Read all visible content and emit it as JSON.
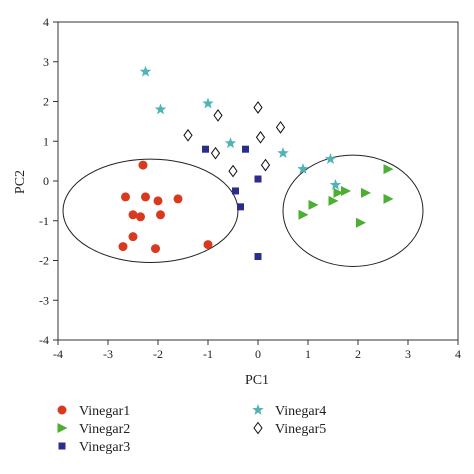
{
  "chart_data": {
    "type": "scatter",
    "title": "",
    "xlabel": "PC1",
    "ylabel": "PC2",
    "xlim": [
      -4,
      4
    ],
    "ylim": [
      -4,
      4
    ],
    "xticks": [
      "-4",
      "-3",
      "-2",
      "-1",
      "0",
      "1",
      "2",
      "3",
      "4"
    ],
    "yticks": [
      "-4",
      "-3",
      "-2",
      "-1",
      "0",
      "1",
      "2",
      "3",
      "4"
    ],
    "grid": false,
    "legend_position": "bottom",
    "series": [
      {
        "name": "Vinegar1",
        "marker": "circle",
        "color": "#d9391f",
        "points": [
          [
            -2.3,
            0.4
          ],
          [
            -2.65,
            -0.4
          ],
          [
            -2.25,
            -0.4
          ],
          [
            -2.5,
            -0.85
          ],
          [
            -2.35,
            -0.9
          ],
          [
            -2.0,
            -0.5
          ],
          [
            -1.95,
            -0.85
          ],
          [
            -1.6,
            -0.45
          ],
          [
            -2.5,
            -1.4
          ],
          [
            -2.7,
            -1.65
          ],
          [
            -2.05,
            -1.7
          ],
          [
            -1.0,
            -1.6
          ]
        ]
      },
      {
        "name": "Vinegar2",
        "marker": "triangle-right",
        "color": "#4caf32",
        "points": [
          [
            2.6,
            0.3
          ],
          [
            1.75,
            -0.25
          ],
          [
            1.6,
            -0.3
          ],
          [
            2.15,
            -0.3
          ],
          [
            1.5,
            -0.5
          ],
          [
            1.1,
            -0.6
          ],
          [
            0.9,
            -0.85
          ],
          [
            2.05,
            -1.05
          ],
          [
            2.6,
            -0.45
          ]
        ]
      },
      {
        "name": "Vinegar3",
        "marker": "square",
        "color": "#2b2d8a",
        "points": [
          [
            -1.05,
            0.8
          ],
          [
            -0.25,
            0.8
          ],
          [
            -0.45,
            -0.25
          ],
          [
            -0.35,
            -0.65
          ],
          [
            0.0,
            0.05
          ],
          [
            0.0,
            -1.9
          ]
        ]
      },
      {
        "name": "Vinegar4",
        "marker": "star",
        "color": "#4fb3b8",
        "points": [
          [
            -2.25,
            2.75
          ],
          [
            -1.95,
            1.8
          ],
          [
            -1.0,
            1.95
          ],
          [
            -0.55,
            0.95
          ],
          [
            0.5,
            0.7
          ],
          [
            0.9,
            0.3
          ],
          [
            1.45,
            0.55
          ],
          [
            1.55,
            -0.1
          ]
        ]
      },
      {
        "name": "Vinegar5",
        "marker": "diamond-open",
        "color": "#111111",
        "points": [
          [
            -1.4,
            1.15
          ],
          [
            -0.8,
            1.65
          ],
          [
            0.0,
            1.85
          ],
          [
            -0.85,
            0.7
          ],
          [
            -0.5,
            0.25
          ],
          [
            0.05,
            1.1
          ],
          [
            0.45,
            1.35
          ],
          [
            0.15,
            0.4
          ]
        ]
      }
    ],
    "ellipses": [
      {
        "cx": -2.15,
        "cy": -0.75,
        "rx": 1.75,
        "ry": 1.3
      },
      {
        "cx": 1.9,
        "cy": -0.75,
        "rx": 1.4,
        "ry": 1.4
      }
    ]
  }
}
